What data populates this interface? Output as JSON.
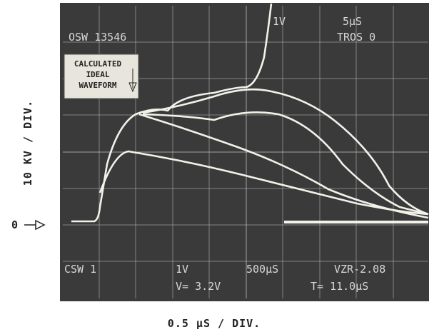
{
  "readouts": {
    "top": [
      "OSW 13546",
      "1V",
      "5μS",
      "TROS 0"
    ],
    "bottom": [
      "CSW 1",
      "1V",
      "500μS",
      "VZR-2.08",
      "V= 3.2V",
      "T= 11.0μS"
    ]
  },
  "annotation": {
    "lines": [
      "CALCULATED",
      "IDEAL",
      "WAVEFORM"
    ]
  },
  "axes": {
    "y_label": "10 KV / DIV.",
    "x_label": "0.5 μS / DIV.",
    "zero_label": "0"
  }
}
